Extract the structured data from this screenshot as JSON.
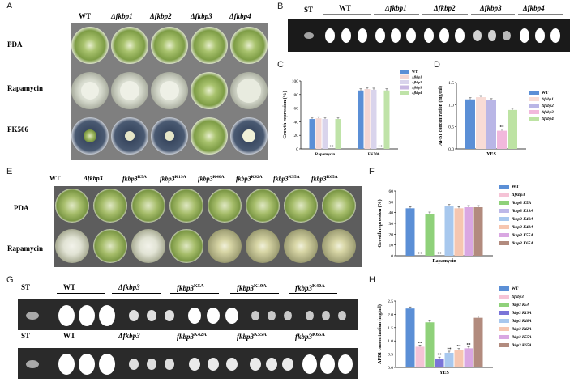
{
  "panels": {
    "A": "A",
    "B": "B",
    "C": "C",
    "D": "D",
    "E": "E",
    "F": "F",
    "G": "G",
    "H": "H"
  },
  "panelA": {
    "cols": [
      "WT",
      "Δfkbp1",
      "Δfkbp2",
      "Δfkbp3",
      "Δfkbp4"
    ],
    "rows": [
      "PDA",
      "Rapamycin",
      "FK506"
    ]
  },
  "panelB": {
    "st": "ST",
    "groups": [
      "WT",
      "Δfkbp1",
      "Δfkbp2",
      "Δfkbp3",
      "Δfkbp4"
    ]
  },
  "panelE": {
    "cols": [
      {
        "pre": "WT",
        "sup": ""
      },
      {
        "pre": "Δfkbp3",
        "sup": ""
      },
      {
        "pre": "fkbp3",
        "sup": "K5A"
      },
      {
        "pre": "fkbp3",
        "sup": "K19A"
      },
      {
        "pre": "fkbp3",
        "sup": "K40A"
      },
      {
        "pre": "fkbp3",
        "sup": "K42A"
      },
      {
        "pre": "fkbp3",
        "sup": "K55A"
      },
      {
        "pre": "fkbp3",
        "sup": "K65A"
      }
    ],
    "rows": [
      "PDA",
      "Rapamycin"
    ]
  },
  "panelG": {
    "st": "ST",
    "top_groups": [
      {
        "pre": "WT",
        "sup": ""
      },
      {
        "pre": "Δfkbp3",
        "sup": ""
      },
      {
        "pre": "fkbp3",
        "sup": "K5A"
      },
      {
        "pre": "fkbp3",
        "sup": "K19A"
      },
      {
        "pre": "fkbp3",
        "sup": "K40A"
      }
    ],
    "bottom_groups": [
      {
        "pre": "WT",
        "sup": ""
      },
      {
        "pre": "Δfkbp3",
        "sup": ""
      },
      {
        "pre": "fkbp3",
        "sup": "K42A"
      },
      {
        "pre": "fkbp3",
        "sup": "K55A"
      },
      {
        "pre": "fkbp3",
        "sup": "K65A"
      }
    ]
  },
  "chart_data": [
    {
      "panel": "C",
      "type": "bar",
      "categories": [
        "Rapamycin",
        "FK506"
      ],
      "ylabel": "Growth repression (%)",
      "ylim": [
        0,
        100
      ],
      "yticks": [
        0,
        20,
        40,
        60,
        80,
        100
      ],
      "series": [
        {
          "name": "WT",
          "color": "#5b8fd6",
          "values": [
            44,
            86
          ]
        },
        {
          "name": "Δfkbp1",
          "color": "#f4d7d4",
          "values": [
            45,
            88
          ]
        },
        {
          "name": "Δfkbp2",
          "color": "#d9d4ec",
          "values": [
            44,
            87
          ]
        },
        {
          "name": "Δfkbp3",
          "color": "#c9b8e2",
          "values": [
            0,
            0
          ]
        },
        {
          "name": "Δfkbp4",
          "color": "#bfe3a8",
          "values": [
            44,
            86
          ]
        }
      ],
      "annotations": [
        "**",
        "**"
      ]
    },
    {
      "panel": "D",
      "type": "bar",
      "categories": [
        "YES"
      ],
      "ylabel": "AFB1 concentration (mg/ml)",
      "ylim": [
        0,
        1.5
      ],
      "yticks": [
        0.0,
        0.5,
        1.0,
        1.5
      ],
      "series": [
        {
          "name": "WT",
          "color": "#5b8fd6",
          "values": [
            1.12
          ]
        },
        {
          "name": "Δfkbp1",
          "color": "#f8dcd6",
          "values": [
            1.17
          ]
        },
        {
          "name": "Δfkbp2",
          "color": "#b9b6e6",
          "values": [
            1.1
          ]
        },
        {
          "name": "Δfkbp3",
          "color": "#f2b8dc",
          "values": [
            0.41
          ]
        },
        {
          "name": "Δfkbp4",
          "color": "#bde3a3",
          "values": [
            0.88
          ]
        }
      ],
      "annotations": [
        "**"
      ]
    },
    {
      "panel": "F",
      "type": "bar",
      "categories": [
        "Rapamycin"
      ],
      "ylabel": "Growth repression (%)",
      "ylim": [
        0,
        60
      ],
      "yticks": [
        0,
        10,
        20,
        30,
        40,
        50,
        60
      ],
      "series": [
        {
          "name": "WT",
          "color": "#5b8fd6",
          "values": [
            44
          ]
        },
        {
          "name": "Δfkbp3",
          "color": "#f5c3d6",
          "values": [
            0
          ]
        },
        {
          "name": "fkbp3 K5A",
          "color": "#8fd17a",
          "values": [
            39
          ]
        },
        {
          "name": "fkbp3 K19A",
          "color": "#bdb8e8",
          "values": [
            0
          ]
        },
        {
          "name": "fkbp3 K40A",
          "color": "#a8c8ee",
          "values": [
            46
          ]
        },
        {
          "name": "fkbp3 K42A",
          "color": "#f6c6b0",
          "values": [
            44
          ]
        },
        {
          "name": "fkbp3 K55A",
          "color": "#d9a7e2",
          "values": [
            45
          ]
        },
        {
          "name": "fkbp3 K65A",
          "color": "#b28b7e",
          "values": [
            45
          ]
        }
      ],
      "annotations": [
        "**",
        "**"
      ]
    },
    {
      "panel": "H",
      "type": "bar",
      "categories": [
        "YES"
      ],
      "ylabel": "AFB1 concentration (mg/ml)",
      "ylim": [
        0,
        2.5
      ],
      "yticks": [
        0.0,
        0.5,
        1.0,
        1.5,
        2.0,
        2.5
      ],
      "series": [
        {
          "name": "WT",
          "color": "#5b8fd6",
          "values": [
            2.22
          ]
        },
        {
          "name": "Δfkbp3",
          "color": "#f5c3d6",
          "values": [
            0.78
          ]
        },
        {
          "name": "fkbp3 K5A",
          "color": "#8fd17a",
          "values": [
            1.7
          ]
        },
        {
          "name": "fkbp3 K19A",
          "color": "#7a74d8",
          "values": [
            0.33
          ]
        },
        {
          "name": "fkbp3 K40A",
          "color": "#a8c8ee",
          "values": [
            0.55
          ]
        },
        {
          "name": "fkbp3 K42A",
          "color": "#f6c6b0",
          "values": [
            0.65
          ]
        },
        {
          "name": "fkbp3 K55A",
          "color": "#d9a7e2",
          "values": [
            0.72
          ]
        },
        {
          "name": "fkbp3 K65A",
          "color": "#b28b7e",
          "values": [
            1.87
          ]
        }
      ],
      "annotations": [
        "**",
        "**",
        "**",
        "**",
        "**"
      ]
    }
  ]
}
